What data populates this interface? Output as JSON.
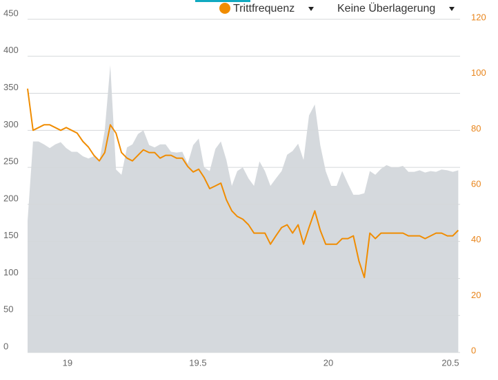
{
  "chart_data": {
    "type": "line",
    "legend_label": "Trittfrequenz",
    "overlay_menu": "Keine Überlagerung",
    "x": [
      18.847,
      18.868,
      18.889,
      18.91,
      18.932,
      18.953,
      18.974,
      18.995,
      19.016,
      19.037,
      19.059,
      19.08,
      19.101,
      19.122,
      19.143,
      19.164,
      19.186,
      19.207,
      19.228,
      19.249,
      19.27,
      19.291,
      19.313,
      19.334,
      19.355,
      19.376,
      19.397,
      19.418,
      19.44,
      19.461,
      19.482,
      19.503,
      19.524,
      19.545,
      19.567,
      19.588,
      19.609,
      19.63,
      19.651,
      19.672,
      19.694,
      19.715,
      19.736,
      19.757,
      19.778,
      19.799,
      19.821,
      19.842,
      19.863,
      19.884,
      19.905,
      19.926,
      19.948,
      19.969,
      19.99,
      20.011,
      20.032,
      20.053,
      20.075,
      20.096,
      20.117,
      20.138,
      20.159,
      20.18,
      20.202,
      20.223,
      20.244,
      20.265,
      20.286,
      20.307,
      20.329,
      20.35,
      20.371,
      20.392,
      20.413,
      20.434,
      20.456,
      20.477,
      20.498
    ],
    "series": [
      {
        "color": "#d5d9dd",
        "style": "area",
        "values": [
          178,
          285,
          285,
          281,
          276,
          281,
          284,
          276,
          271,
          271,
          265,
          262,
          265,
          258,
          300,
          388,
          247,
          240,
          277,
          281,
          295,
          300,
          280,
          277,
          281,
          281,
          271,
          270,
          271,
          255,
          280,
          289,
          250,
          245,
          275,
          285,
          260,
          225,
          245,
          250,
          235,
          225,
          258,
          245,
          225,
          235,
          245,
          267,
          272,
          282,
          260,
          320,
          335,
          280,
          245,
          225,
          225,
          245,
          228,
          213,
          213,
          215,
          245,
          240,
          248,
          253,
          250,
          250,
          252,
          244,
          244,
          246,
          243,
          245,
          244,
          247,
          246,
          244,
          246
        ]
      },
      {
        "name": "Trittfrequenz",
        "color": "#f08c00",
        "style": "line",
        "axis": "y2",
        "values": [
          95,
          80,
          81,
          82,
          82,
          81,
          80,
          81,
          80,
          79,
          76,
          74,
          71,
          69,
          72,
          82,
          79,
          72,
          70,
          69,
          71,
          73,
          72,
          72,
          70,
          71,
          71,
          70,
          70,
          67,
          65,
          66,
          63,
          59,
          60,
          61,
          55,
          51,
          49,
          48,
          46,
          43,
          43,
          43,
          39,
          42,
          45,
          46,
          43,
          46,
          39,
          45,
          51,
          44,
          39,
          39,
          39,
          41,
          41,
          42,
          33,
          27,
          43,
          41,
          43,
          43,
          43,
          43,
          43,
          42,
          42,
          42,
          41,
          42,
          43,
          43,
          42,
          42,
          44
        ]
      }
    ],
    "xlim": [
      18.847,
      20.505
    ],
    "xticks": [
      19,
      19.5,
      20,
      20.5
    ],
    "ylim": [
      0,
      450
    ],
    "yticks": [
      0,
      50,
      100,
      150,
      200,
      250,
      300,
      350,
      400,
      450
    ],
    "y2lim": [
      0,
      120
    ],
    "y2ticks": [
      0,
      20,
      40,
      60,
      80,
      100,
      120
    ],
    "grid": true
  }
}
